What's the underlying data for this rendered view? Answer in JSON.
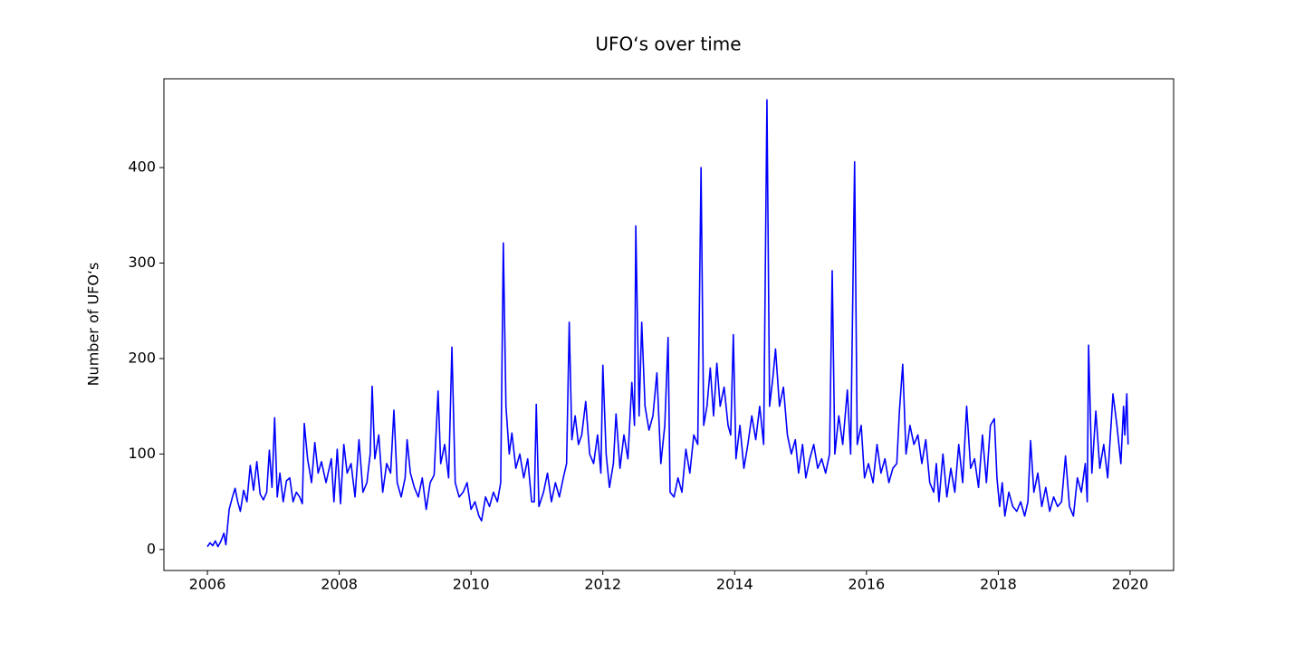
{
  "chart_data": {
    "type": "line",
    "title": "UFO‘s over time",
    "y_label": "Number of UFO‘s",
    "xlim": [
      2005.34,
      2020.66
    ],
    "ylim": [
      -22,
      493
    ],
    "xticks": [
      2006,
      2008,
      2010,
      2012,
      2014,
      2016,
      2018,
      2020
    ],
    "yticks": [
      0,
      100,
      200,
      300,
      400
    ],
    "grid": false,
    "x": [
      2006.0,
      2006.04,
      2006.08,
      2006.12,
      2006.16,
      2006.2,
      2006.25,
      2006.28,
      2006.33,
      2006.38,
      2006.42,
      2006.46,
      2006.5,
      2006.55,
      2006.6,
      2006.65,
      2006.7,
      2006.75,
      2006.8,
      2006.85,
      2006.9,
      2006.94,
      2006.98,
      2007.02,
      2007.06,
      2007.1,
      2007.15,
      2007.2,
      2007.25,
      2007.3,
      2007.35,
      2007.4,
      2007.44,
      2007.47,
      2007.52,
      2007.58,
      2007.63,
      2007.68,
      2007.73,
      2007.8,
      2007.88,
      2007.92,
      2007.97,
      2008.02,
      2008.07,
      2008.12,
      2008.18,
      2008.24,
      2008.3,
      2008.36,
      2008.42,
      2008.47,
      2008.5,
      2008.54,
      2008.6,
      2008.66,
      2008.72,
      2008.78,
      2008.83,
      2008.88,
      2008.94,
      2009.0,
      2009.03,
      2009.08,
      2009.14,
      2009.2,
      2009.26,
      2009.32,
      2009.38,
      2009.44,
      2009.5,
      2009.54,
      2009.6,
      2009.66,
      2009.71,
      2009.76,
      2009.82,
      2009.88,
      2009.94,
      2010.0,
      2010.06,
      2010.12,
      2010.16,
      2010.22,
      2010.28,
      2010.34,
      2010.4,
      2010.45,
      2010.49,
      2010.53,
      2010.58,
      2010.62,
      2010.68,
      2010.74,
      2010.8,
      2010.86,
      2010.92,
      2010.96,
      2010.99,
      2011.03,
      2011.1,
      2011.16,
      2011.22,
      2011.28,
      2011.34,
      2011.4,
      2011.45,
      2011.49,
      2011.53,
      2011.58,
      2011.63,
      2011.68,
      2011.74,
      2011.8,
      2011.86,
      2011.92,
      2011.97,
      2012.0,
      2012.05,
      2012.1,
      2012.16,
      2012.2,
      2012.26,
      2012.32,
      2012.38,
      2012.44,
      2012.48,
      2012.5,
      2012.55,
      2012.59,
      2012.64,
      2012.7,
      2012.76,
      2012.82,
      2012.88,
      2012.94,
      2012.99,
      2013.02,
      2013.08,
      2013.14,
      2013.2,
      2013.26,
      2013.32,
      2013.38,
      2013.44,
      2013.49,
      2013.53,
      2013.58,
      2013.63,
      2013.68,
      2013.73,
      2013.78,
      2013.84,
      2013.9,
      2013.94,
      2013.98,
      2014.02,
      2014.08,
      2014.14,
      2014.2,
      2014.26,
      2014.32,
      2014.38,
      2014.44,
      2014.49,
      2014.53,
      2014.58,
      2014.62,
      2014.68,
      2014.74,
      2014.8,
      2014.86,
      2014.92,
      2014.97,
      2015.03,
      2015.08,
      2015.14,
      2015.2,
      2015.26,
      2015.32,
      2015.38,
      2015.44,
      2015.48,
      2015.52,
      2015.58,
      2015.64,
      2015.71,
      2015.76,
      2015.82,
      2015.86,
      2015.92,
      2015.97,
      2016.03,
      2016.1,
      2016.16,
      2016.22,
      2016.28,
      2016.34,
      2016.4,
      2016.46,
      2016.5,
      2016.55,
      2016.6,
      2016.66,
      2016.72,
      2016.78,
      2016.84,
      2016.9,
      2016.96,
      2017.02,
      2017.06,
      2017.1,
      2017.16,
      2017.22,
      2017.28,
      2017.34,
      2017.4,
      2017.46,
      2017.52,
      2017.58,
      2017.64,
      2017.7,
      2017.76,
      2017.82,
      2017.88,
      2017.94,
      2017.98,
      2018.02,
      2018.06,
      2018.1,
      2018.16,
      2018.22,
      2018.28,
      2018.34,
      2018.4,
      2018.45,
      2018.49,
      2018.54,
      2018.6,
      2018.66,
      2018.72,
      2018.78,
      2018.84,
      2018.9,
      2018.96,
      2019.02,
      2019.08,
      2019.14,
      2019.2,
      2019.26,
      2019.32,
      2019.35,
      2019.37,
      2019.42,
      2019.48,
      2019.54,
      2019.6,
      2019.66,
      2019.72,
      2019.74,
      2019.8,
      2019.86,
      2019.9,
      2019.92,
      2019.95,
      2019.97
    ],
    "series": [
      {
        "color": "#0000ff",
        "values": [
          3,
          7,
          4,
          9,
          3,
          8,
          17,
          5,
          42,
          55,
          64,
          50,
          40,
          62,
          50,
          88,
          62,
          92,
          58,
          52,
          60,
          104,
          65,
          138,
          55,
          80,
          50,
          72,
          75,
          50,
          60,
          55,
          48,
          132,
          95,
          70,
          112,
          80,
          92,
          70,
          95,
          50,
          105,
          48,
          110,
          80,
          90,
          55,
          115,
          60,
          70,
          100,
          171,
          95,
          120,
          60,
          90,
          80,
          146,
          70,
          55,
          75,
          115,
          80,
          65,
          55,
          75,
          42,
          70,
          78,
          166,
          90,
          110,
          75,
          212,
          70,
          55,
          60,
          70,
          42,
          50,
          35,
          30,
          55,
          45,
          60,
          50,
          70,
          321,
          150,
          100,
          122,
          85,
          100,
          75,
          95,
          50,
          50,
          152,
          45,
          60,
          80,
          50,
          70,
          55,
          75,
          90,
          238,
          115,
          140,
          110,
          120,
          155,
          100,
          90,
          120,
          80,
          193,
          100,
          65,
          90,
          142,
          85,
          120,
          95,
          175,
          130,
          339,
          140,
          238,
          150,
          125,
          140,
          185,
          90,
          130,
          222,
          60,
          55,
          75,
          60,
          105,
          80,
          120,
          110,
          400,
          130,
          150,
          190,
          140,
          195,
          150,
          170,
          130,
          120,
          225,
          95,
          130,
          85,
          110,
          140,
          115,
          150,
          110,
          471,
          150,
          180,
          210,
          150,
          170,
          120,
          100,
          115,
          80,
          110,
          75,
          95,
          110,
          85,
          95,
          80,
          100,
          292,
          100,
          140,
          110,
          167,
          100,
          406,
          110,
          130,
          75,
          90,
          70,
          110,
          80,
          95,
          70,
          85,
          90,
          145,
          194,
          100,
          130,
          110,
          120,
          90,
          115,
          70,
          60,
          90,
          50,
          100,
          55,
          85,
          60,
          110,
          70,
          150,
          85,
          95,
          65,
          120,
          70,
          130,
          137,
          75,
          45,
          70,
          35,
          60,
          45,
          40,
          50,
          35,
          50,
          114,
          60,
          80,
          45,
          65,
          40,
          55,
          45,
          50,
          98,
          45,
          35,
          75,
          60,
          90,
          50,
          214,
          80,
          145,
          85,
          110,
          75,
          140,
          163,
          130,
          90,
          150,
          120,
          163,
          110
        ]
      }
    ]
  }
}
